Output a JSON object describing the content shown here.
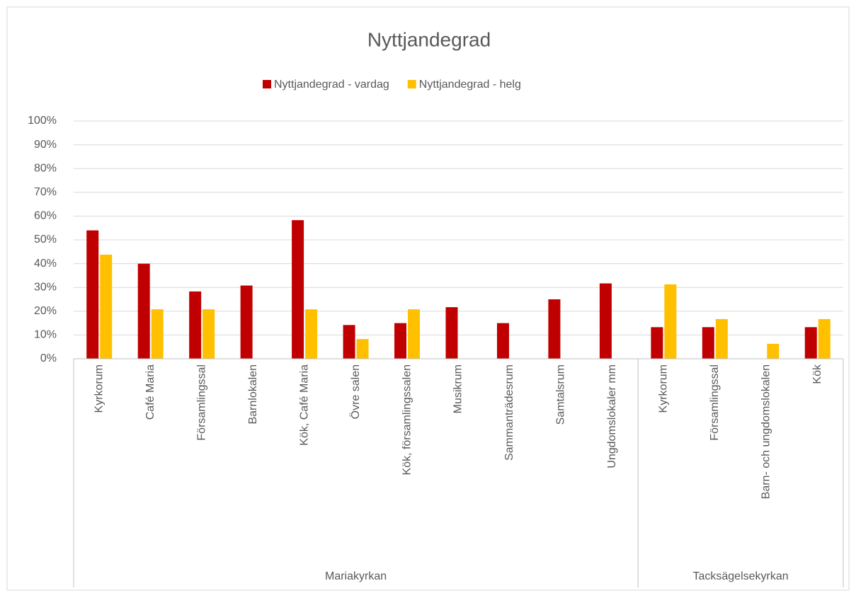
{
  "chart_data": {
    "type": "bar",
    "title": "Nyttjandegrad",
    "groups": [
      {
        "name": "Mariakyrkan",
        "categories": [
          "Kyrkorum",
          "Café Maria",
          "Församlingssal",
          "Barnlokalen",
          "Kök, Café Maria",
          "Övre salen",
          "Kök, församlingssalen",
          "Musikrum",
          "Sammanträdesrum",
          "Samtalsrum",
          "Ungdomslokaler mm"
        ]
      },
      {
        "name": "Tacksägelsekyrkan",
        "categories": [
          "Kyrkorum",
          "Församlingssal",
          "Barn- och ungdomslokalen",
          "Kök"
        ]
      }
    ],
    "series": [
      {
        "name": "Nyttjandegrad - vardag",
        "color": "#c00000",
        "values": [
          54,
          40,
          28.3,
          30.8,
          58.3,
          14.2,
          15,
          21.7,
          15,
          25,
          31.7,
          13.3,
          13.3,
          null,
          13.3
        ]
      },
      {
        "name": "Nyttjandegrad - helg",
        "color": "#ffc000",
        "values": [
          43.8,
          20.8,
          20.8,
          null,
          20.8,
          8.3,
          20.8,
          null,
          null,
          null,
          null,
          31.3,
          16.7,
          6.3,
          16.7
        ]
      }
    ],
    "ylim": [
      0,
      100
    ],
    "yticks": [
      {
        "value": 0,
        "label": "0%"
      },
      {
        "value": 10,
        "label": "10%"
      },
      {
        "value": 20,
        "label": "20%"
      },
      {
        "value": 30,
        "label": "30%"
      },
      {
        "value": 40,
        "label": "40%"
      },
      {
        "value": 50,
        "label": "50%"
      },
      {
        "value": 60,
        "label": "60%"
      },
      {
        "value": 70,
        "label": "70%"
      },
      {
        "value": 80,
        "label": "80%"
      },
      {
        "value": 90,
        "label": "90%"
      },
      {
        "value": 100,
        "label": "100%"
      }
    ],
    "grid": true,
    "legend": "top"
  }
}
